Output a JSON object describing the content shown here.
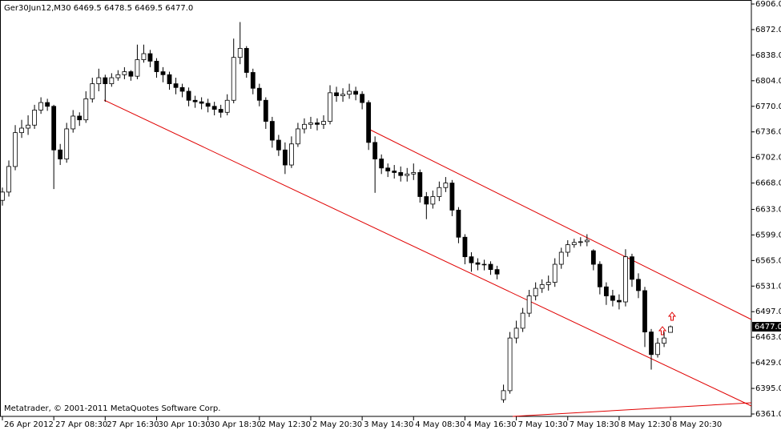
{
  "chart_data": {
    "type": "candlestick",
    "title": "Ger30Jun12,M30  6469.5 6478.5 6469.5 6477.0",
    "footer": "Metatrader, © 2001-2011 MetaQuotes Software Corp.",
    "colors": {
      "up": "#ffffff",
      "down": "#000000",
      "outline": "#000000"
    },
    "current_price": {
      "value": 6477,
      "label": "6477.0"
    },
    "ylim": [
      6361,
      6906
    ],
    "yticks": [
      {
        "value": 6906,
        "label": "6906.0"
      },
      {
        "value": 6872,
        "label": "6872.0"
      },
      {
        "value": 6838,
        "label": "6838.0"
      },
      {
        "value": 6804,
        "label": "6804.0"
      },
      {
        "value": 6770,
        "label": "6770.0"
      },
      {
        "value": 6736,
        "label": "6736.0"
      },
      {
        "value": 6702,
        "label": "6702.0"
      },
      {
        "value": 6668,
        "label": "6668.0"
      },
      {
        "value": 6633,
        "label": "6633.0"
      },
      {
        "value": 6599,
        "label": "6599.0"
      },
      {
        "value": 6565,
        "label": "6565.0"
      },
      {
        "value": 6531,
        "label": "6531.0"
      },
      {
        "value": 6497,
        "label": "6497.0"
      },
      {
        "value": 6463,
        "label": "6463.0"
      },
      {
        "value": 6429,
        "label": "6429.0"
      },
      {
        "value": 6395,
        "label": "6395.0"
      },
      {
        "value": 6361,
        "label": "6361.0"
      }
    ],
    "categories": [
      "26 Apr 2012",
      null,
      null,
      null,
      null,
      null,
      null,
      null,
      "27 Apr 08:30",
      null,
      null,
      null,
      null,
      null,
      null,
      null,
      "27 Apr 16:30",
      null,
      null,
      null,
      null,
      null,
      null,
      null,
      "30 Apr 10:30",
      null,
      null,
      null,
      null,
      null,
      null,
      null,
      "30 Apr 18:30",
      null,
      null,
      null,
      null,
      null,
      null,
      null,
      "2 May 12:30",
      null,
      null,
      null,
      null,
      null,
      null,
      null,
      "2 May 20:30",
      null,
      null,
      null,
      null,
      null,
      null,
      null,
      "3 May 14:30",
      null,
      null,
      null,
      null,
      null,
      null,
      null,
      "4 May 08:30",
      null,
      null,
      null,
      null,
      null,
      null,
      null,
      "4 May 16:30",
      null,
      null,
      null,
      null,
      null,
      null,
      null,
      "7 May 10:30",
      null,
      null,
      null,
      null,
      null,
      null,
      null,
      "7 May 18:30",
      null,
      null,
      null,
      null,
      null,
      null,
      null,
      "8 May 12:30",
      null,
      null,
      null,
      null,
      null,
      null,
      null,
      "8 May 20:30"
    ],
    "candles": [
      [
        6645,
        6662,
        6638,
        6656
      ],
      [
        6656,
        6698,
        6650,
        6690
      ],
      [
        6690,
        6745,
        6685,
        6735
      ],
      [
        6735,
        6752,
        6728,
        6741
      ],
      [
        6741,
        6758,
        6732,
        6745
      ],
      [
        6745,
        6772,
        6740,
        6765
      ],
      [
        6765,
        6782,
        6760,
        6775
      ],
      [
        6775,
        6780,
        6764,
        6770
      ],
      [
        6770,
        6772,
        6660,
        6712
      ],
      [
        6712,
        6720,
        6692,
        6700
      ],
      [
        6700,
        6748,
        6695,
        6740
      ],
      [
        6740,
        6765,
        6735,
        6757
      ],
      [
        6757,
        6762,
        6744,
        6752
      ],
      [
        6752,
        6790,
        6748,
        6780
      ],
      [
        6780,
        6808,
        6775,
        6800
      ],
      [
        6800,
        6820,
        6790,
        6808
      ],
      [
        6808,
        6812,
        6776,
        6800
      ],
      [
        6800,
        6814,
        6796,
        6808
      ],
      [
        6808,
        6818,
        6804,
        6812
      ],
      [
        6812,
        6822,
        6806,
        6816
      ],
      [
        6816,
        6818,
        6804,
        6810
      ],
      [
        6810,
        6852,
        6806,
        6832
      ],
      [
        6832,
        6852,
        6828,
        6840
      ],
      [
        6840,
        6845,
        6822,
        6830
      ],
      [
        6830,
        6834,
        6808,
        6816
      ],
      [
        6816,
        6822,
        6802,
        6812
      ],
      [
        6812,
        6816,
        6792,
        6800
      ],
      [
        6800,
        6808,
        6786,
        6795
      ],
      [
        6795,
        6800,
        6782,
        6790
      ],
      [
        6790,
        6795,
        6770,
        6778
      ],
      [
        6778,
        6784,
        6768,
        6776
      ],
      [
        6776,
        6782,
        6766,
        6774
      ],
      [
        6774,
        6780,
        6762,
        6770
      ],
      [
        6770,
        6776,
        6758,
        6766
      ],
      [
        6766,
        6772,
        6755,
        6762
      ],
      [
        6762,
        6786,
        6758,
        6778
      ],
      [
        6778,
        6860,
        6774,
        6835
      ],
      [
        6835,
        6882,
        6826,
        6847
      ],
      [
        6847,
        6850,
        6808,
        6815
      ],
      [
        6815,
        6820,
        6786,
        6794
      ],
      [
        6794,
        6800,
        6770,
        6778
      ],
      [
        6778,
        6782,
        6740,
        6750
      ],
      [
        6750,
        6756,
        6715,
        6725
      ],
      [
        6725,
        6732,
        6704,
        6712
      ],
      [
        6712,
        6722,
        6680,
        6692
      ],
      [
        6692,
        6730,
        6688,
        6720
      ],
      [
        6720,
        6748,
        6716,
        6740
      ],
      [
        6740,
        6754,
        6734,
        6746
      ],
      [
        6746,
        6756,
        6740,
        6748
      ],
      [
        6748,
        6754,
        6738,
        6746
      ],
      [
        6746,
        6758,
        6740,
        6750
      ],
      [
        6750,
        6798,
        6746,
        6788
      ],
      [
        6788,
        6796,
        6776,
        6784
      ],
      [
        6784,
        6794,
        6776,
        6786
      ],
      [
        6786,
        6800,
        6780,
        6790
      ],
      [
        6790,
        6796,
        6778,
        6786
      ],
      [
        6786,
        6790,
        6766,
        6775
      ],
      [
        6775,
        6778,
        6712,
        6722
      ],
      [
        6722,
        6730,
        6655,
        6700
      ],
      [
        6700,
        6706,
        6680,
        6688
      ],
      [
        6688,
        6694,
        6676,
        6684
      ],
      [
        6684,
        6692,
        6674,
        6682
      ],
      [
        6682,
        6690,
        6670,
        6678
      ],
      [
        6678,
        6688,
        6670,
        6680
      ],
      [
        6680,
        6694,
        6672,
        6682
      ],
      [
        6682,
        6686,
        6642,
        6650
      ],
      [
        6650,
        6656,
        6620,
        6640
      ],
      [
        6640,
        6658,
        6634,
        6650
      ],
      [
        6650,
        6670,
        6644,
        6662
      ],
      [
        6662,
        6676,
        6656,
        6668
      ],
      [
        6668,
        6672,
        6624,
        6632
      ],
      [
        6632,
        6636,
        6588,
        6596
      ],
      [
        6596,
        6600,
        6560,
        6570
      ],
      [
        6570,
        6576,
        6550,
        6562
      ],
      [
        6562,
        6568,
        6552,
        6560
      ],
      [
        6560,
        6566,
        6552,
        6560
      ],
      [
        6560,
        6564,
        6546,
        6553
      ],
      [
        6553,
        6558,
        6540,
        6547
      ],
      [
        6380,
        6400,
        6376,
        6392
      ],
      [
        6392,
        6470,
        6388,
        6462
      ],
      [
        6462,
        6485,
        6455,
        6475
      ],
      [
        6475,
        6502,
        6470,
        6495
      ],
      [
        6495,
        6526,
        6490,
        6518
      ],
      [
        6518,
        6536,
        6512,
        6528
      ],
      [
        6528,
        6540,
        6522,
        6533
      ],
      [
        6533,
        6545,
        6525,
        6536
      ],
      [
        6536,
        6568,
        6530,
        6560
      ],
      [
        6560,
        6582,
        6554,
        6576
      ],
      [
        6576,
        6592,
        6570,
        6586
      ],
      [
        6586,
        6594,
        6582,
        6589
      ],
      [
        6589,
        6596,
        6584,
        6590
      ],
      [
        6590,
        6600,
        6584,
        6592
      ],
      [
        6578,
        6580,
        6552,
        6560
      ],
      [
        6560,
        6564,
        6520,
        6530
      ],
      [
        6530,
        6536,
        6506,
        6518
      ],
      [
        6518,
        6526,
        6504,
        6512
      ],
      [
        6512,
        6520,
        6500,
        6510
      ],
      [
        6510,
        6580,
        6504,
        6570
      ],
      [
        6570,
        6574,
        6530,
        6540
      ],
      [
        6540,
        6548,
        6515,
        6525
      ],
      [
        6525,
        6530,
        6450,
        6470
      ],
      [
        6470,
        6474,
        6420,
        6440
      ],
      [
        6440,
        6462,
        6436,
        6455
      ],
      [
        6455,
        6470,
        6450,
        6462
      ],
      [
        6469.5,
        6478.5,
        6469.5,
        6477
      ]
    ]
  }
}
